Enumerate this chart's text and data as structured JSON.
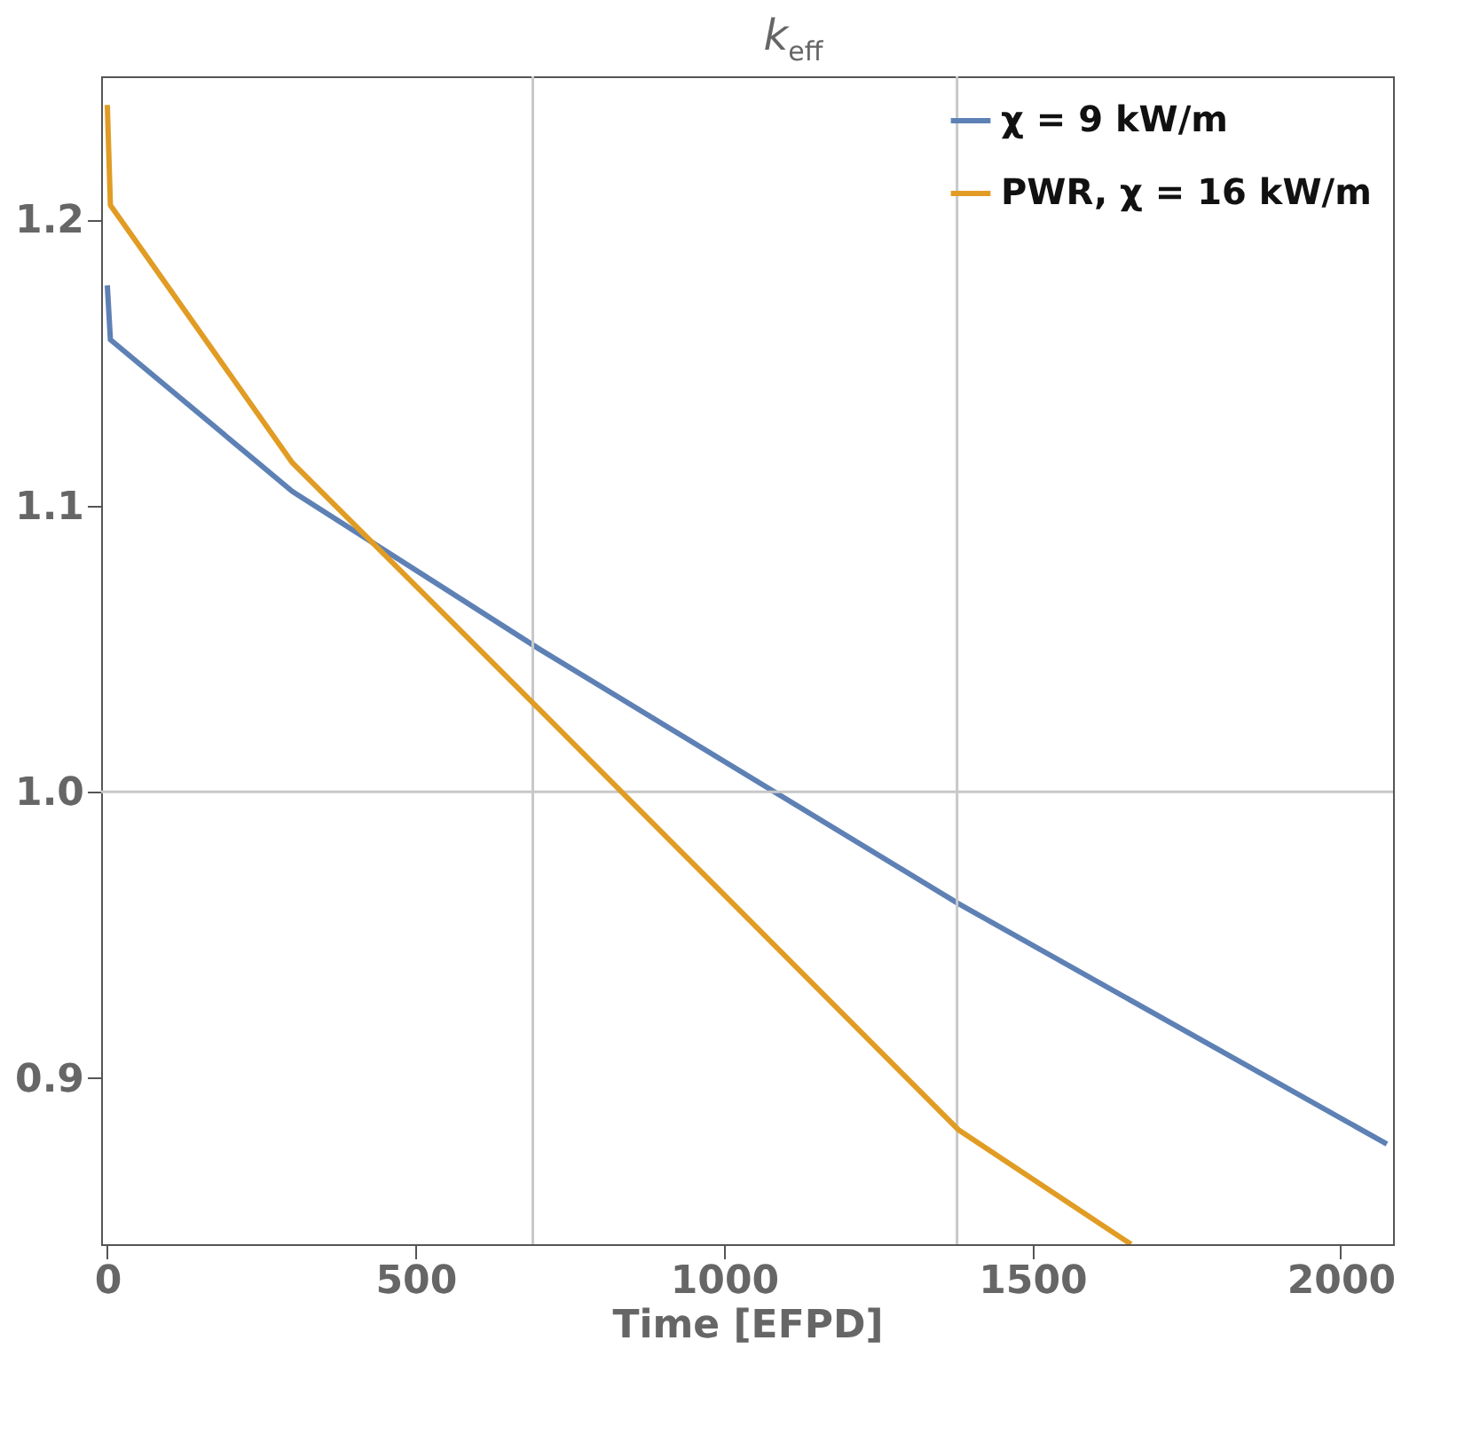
{
  "chart_data": {
    "type": "line",
    "title": "k$_{eff}$",
    "xlabel": "Time [EFPD]",
    "xlim": [
      -10,
      2085
    ],
    "xticks": [
      0,
      500,
      1000,
      1500,
      2000
    ],
    "ylim": [
      0.842,
      1.25
    ],
    "yticks": [
      0.9,
      {
        "value": 1,
        "label": "1.0"
      },
      1.1,
      1.2
    ],
    "grid": false,
    "legend": "top right",
    "ref_lines": [
      {
        "axis": "x",
        "value": 690,
        "color": "#c8c8c8"
      },
      {
        "axis": "x",
        "value": 1378,
        "color": "#c8c8c8"
      },
      {
        "axis": "y",
        "value": 1.0,
        "color": "#c8c8c8"
      }
    ],
    "series": [
      {
        "name": "χ = 9 kW/m",
        "color": "#5e81b5",
        "x": [
          0,
          5,
          300,
          700,
          1380,
          2075
        ],
        "values": [
          1.177,
          1.158,
          1.105,
          1.05,
          0.961,
          0.877
        ]
      },
      {
        "name": "PWR, χ = 16 kW/m",
        "color": "#e19c24",
        "x": [
          0,
          5,
          300,
          700,
          1380,
          1660
        ],
        "values": [
          1.24,
          1.205,
          1.115,
          1.029,
          0.882,
          0.842
        ]
      }
    ]
  }
}
